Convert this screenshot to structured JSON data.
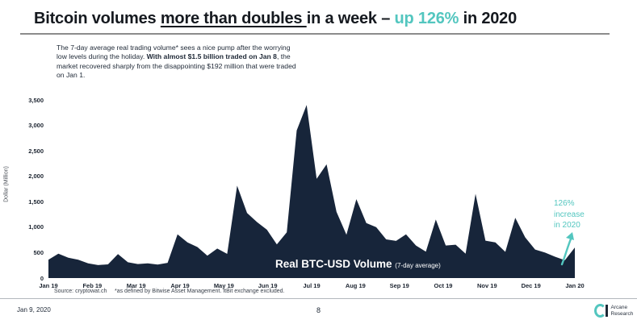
{
  "colors": {
    "accent_teal": "#53c6bf",
    "series_navy": "#17253a"
  },
  "title": {
    "prefix": "Bitcoin volumes ",
    "underlined": "more than doubles ",
    "middle": "in a week – ",
    "highlight": "up 126%",
    "suffix": " in 2020"
  },
  "commentary": {
    "part1": "The 7-day average real trading volume* sees a nice pump after the worrying low levels during the holiday. ",
    "bold": "With almost $1.5 billion traded on Jan 8",
    "part2": ", the market recovered sharply from the disappointing $192 million that were traded on Jan 1."
  },
  "chart_data": {
    "type": "area",
    "title": "Real BTC-USD Volume",
    "title_suffix": "(7-day average)",
    "ylabel": "Dollar (Million)",
    "ylim": [
      0,
      3500
    ],
    "yticks": [
      0,
      500,
      1000,
      1500,
      2000,
      2500,
      3000,
      3500
    ],
    "ytick_labels": [
      "0",
      "500",
      "1,000",
      "1,500",
      "2,000",
      "2,500",
      "3,000",
      "3,500"
    ],
    "x_tick_labels": [
      "Jan 19",
      "Feb 19",
      "Mar 19",
      "Apr 19",
      "May 19",
      "Jun 19",
      "Jul 19",
      "Aug 19",
      "Sep 19",
      "Oct 19",
      "Nov 19",
      "Dec 19",
      "Jan 20"
    ],
    "x_unit": "weekly samples, evenly spaced Jan 2019 – Jan 2020",
    "series_color": "#17253a",
    "grid": false,
    "legend_position": "none",
    "values": [
      360,
      480,
      400,
      360,
      290,
      255,
      270,
      470,
      310,
      275,
      290,
      265,
      300,
      860,
      700,
      610,
      440,
      580,
      475,
      1815,
      1280,
      1100,
      950,
      660,
      900,
      2900,
      3400,
      1950,
      2235,
      1300,
      850,
      1550,
      1080,
      1000,
      760,
      730,
      860,
      640,
      520,
      1150,
      640,
      655,
      480,
      1655,
      735,
      700,
      515,
      1185,
      800,
      560,
      500,
      420,
      350,
      600
    ],
    "annotation": {
      "line1": "126%",
      "line2": "increase",
      "line3": "in 2020",
      "color": "#53c6bf"
    }
  },
  "footnotes": {
    "source": "Source: cryptowat.ch",
    "definition": "*as defined by Bitwise Asset Management. ItBit exchange excluded."
  },
  "footer": {
    "date": "Jan 9, 2020",
    "page": "8",
    "brand_line1": "Arcane",
    "brand_line2": "Research"
  }
}
